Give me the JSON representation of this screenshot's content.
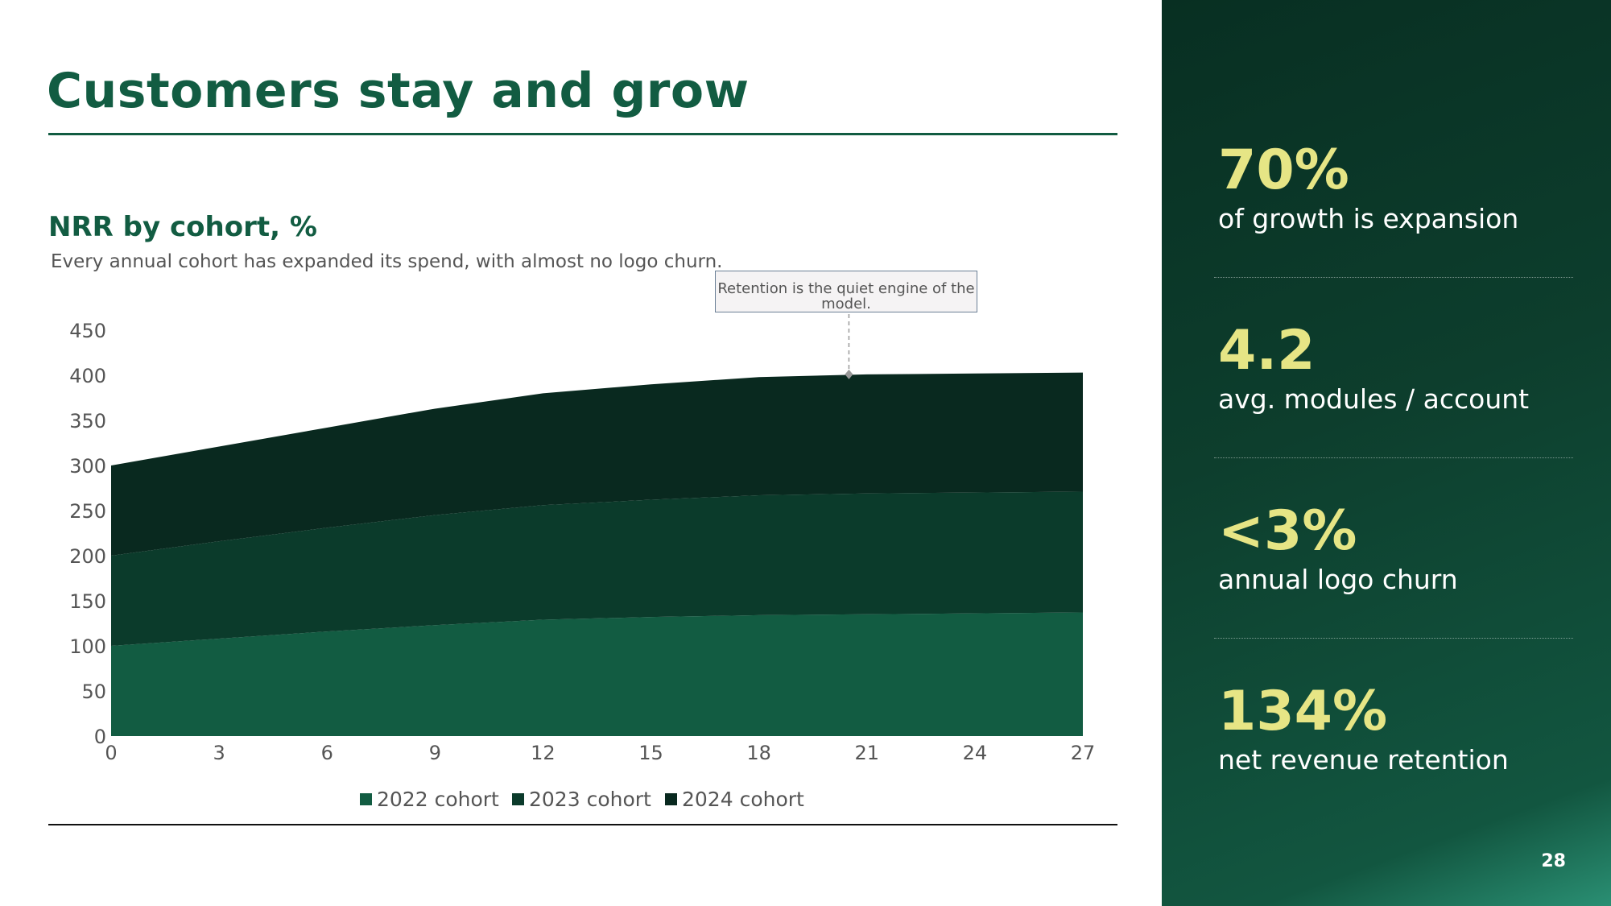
{
  "slide": {
    "title": "Customers stay and grow",
    "page_number": "28"
  },
  "chart_data": {
    "type": "area",
    "stacked": true,
    "title": "NRR by cohort, %",
    "subtitle": "Every annual cohort has expanded its spend, with almost no logo churn.",
    "x": [
      0,
      3,
      6,
      9,
      12,
      15,
      18,
      21,
      24,
      27
    ],
    "xticks": [
      0,
      3,
      6,
      9,
      12,
      15,
      18,
      21,
      24,
      27
    ],
    "yticks": [
      0,
      50,
      100,
      150,
      200,
      250,
      300,
      350,
      400,
      450
    ],
    "xlim": [
      0,
      27
    ],
    "ylim": [
      0,
      450
    ],
    "xlabel": "",
    "ylabel": "",
    "grid": false,
    "legend_position": "bottom",
    "series": [
      {
        "name": "2022 cohort",
        "color": "#125c42",
        "values": [
          100,
          108,
          116,
          123,
          129,
          132,
          134,
          135,
          136,
          137
        ]
      },
      {
        "name": "2023 cohort",
        "color": "#0b3b2b",
        "values": [
          100,
          108,
          115,
          122,
          127,
          130,
          133,
          134,
          134,
          134
        ]
      },
      {
        "name": "2024 cohort",
        "color": "#09291f",
        "values": [
          100,
          105,
          111,
          118,
          124,
          128,
          131,
          132,
          132,
          132
        ]
      }
    ],
    "annotation": {
      "text": "Retention is the quiet engine of the model.",
      "x": 20.5,
      "y": 401
    }
  },
  "kpis": [
    {
      "value": "70%",
      "label": "of growth is expansion"
    },
    {
      "value": "4.2",
      "label": "avg. modules / account"
    },
    {
      "value": "<3%",
      "label": "annual logo churn"
    },
    {
      "value": "134%",
      "label": "net revenue retention"
    }
  ],
  "colors": {
    "brand_green": "#125c42",
    "kpi_accent": "#e6e585",
    "panel_dark": "#082f22"
  }
}
